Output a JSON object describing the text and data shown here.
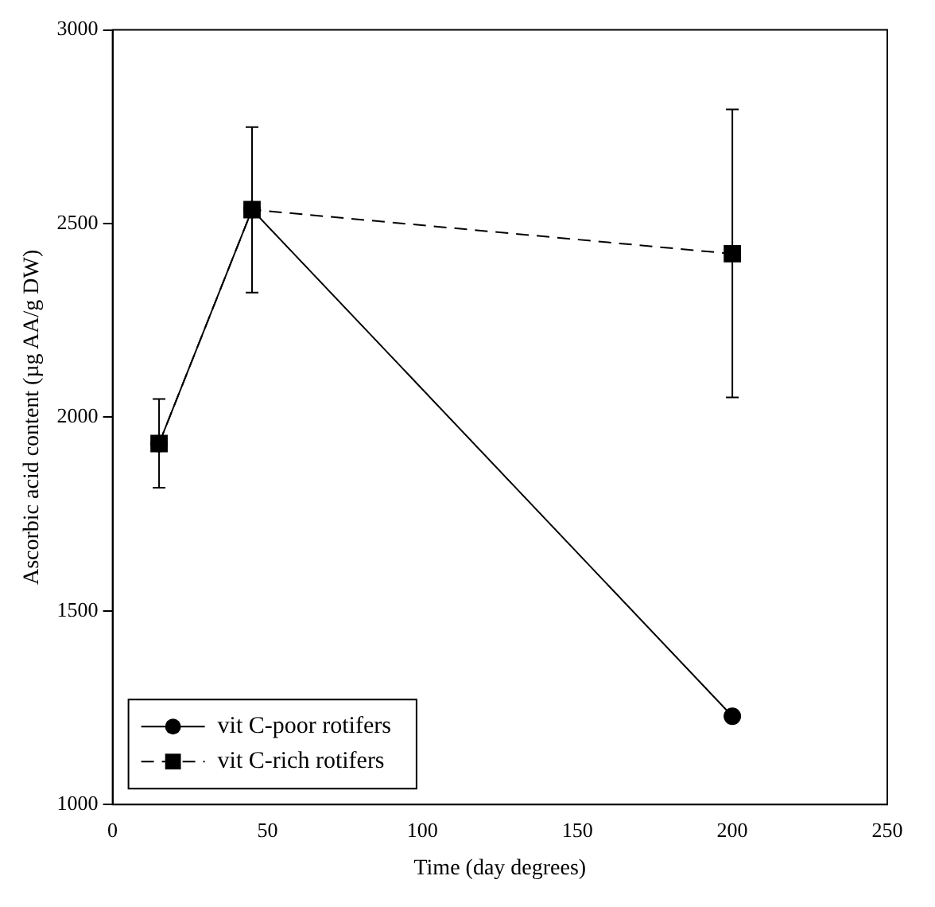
{
  "chart_data": {
    "type": "line",
    "xlabel": "Time (day degrees)",
    "ylabel": "Ascorbic acid content (µg AA/g DW)",
    "xlim": [
      0,
      250
    ],
    "xticks": [
      0,
      50,
      100,
      150,
      200,
      250
    ],
    "ylim": [
      1000,
      3000
    ],
    "yticks": [
      1000,
      1500,
      2000,
      2500,
      3000
    ],
    "grid": false,
    "legend": "bottom left",
    "series": [
      {
        "name": "vit C-poor rotifers",
        "color": "#000000",
        "marker": "circle",
        "line_style": "solid",
        "x": [
          15,
          45,
          200
        ],
        "values": [
          1932,
          2536,
          1228
        ]
      },
      {
        "name": "vit C-rich rotifers",
        "color": "#000000",
        "marker": "square",
        "line_style": "dashed",
        "x": [
          15,
          45,
          200
        ],
        "values": [
          1932,
          2536,
          2422
        ],
        "errors": [
          [
            1818,
            2047
          ],
          [
            2322,
            2749
          ],
          [
            2051,
            2795
          ]
        ]
      }
    ]
  }
}
